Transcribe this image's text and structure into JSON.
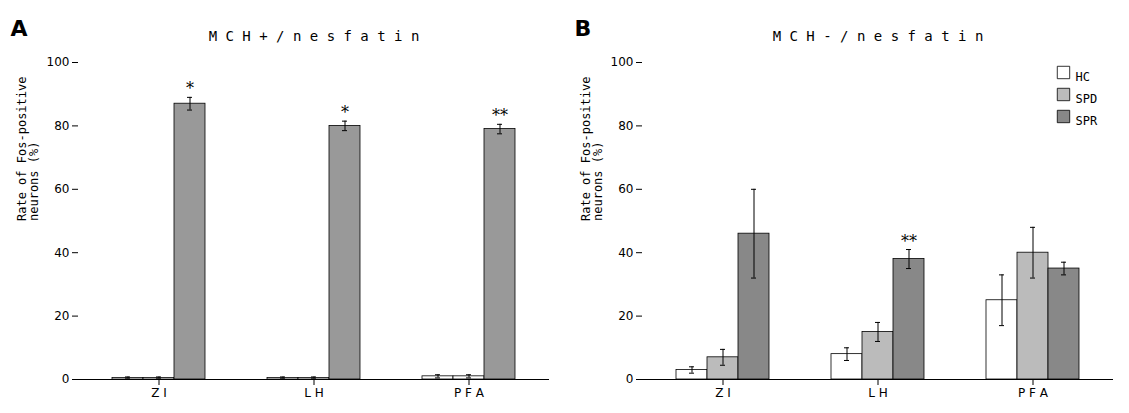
{
  "chart_data": [
    {
      "type": "bar",
      "title": "M C H + / n e s f a t i n",
      "ylabel": "Rate of Fos-positive\nneurons (%)",
      "categories": [
        "Z I",
        "L H",
        "P F A"
      ],
      "series": [
        {
          "name": "HC",
          "color": "#ffffff",
          "values": [
            0.5,
            0.5,
            1.0
          ],
          "errors": [
            0.3,
            0.3,
            0.5
          ]
        },
        {
          "name": "SPD",
          "color": "#ffffff",
          "values": [
            0.5,
            0.5,
            1.0
          ],
          "errors": [
            0.3,
            0.3,
            0.5
          ]
        },
        {
          "name": "SPR",
          "color": "#999999",
          "values": [
            87.0,
            80.0,
            79.0
          ],
          "errors": [
            2.0,
            1.5,
            1.5
          ]
        }
      ],
      "ylim": [
        0,
        100
      ],
      "yticks": [
        0,
        20,
        40,
        60,
        80,
        100
      ],
      "grid": false,
      "annotations": [
        {
          "text": "A"
        },
        {
          "text": "*",
          "series": "SPR",
          "category": "Z I"
        },
        {
          "text": "*",
          "series": "SPR",
          "category": "L H"
        },
        {
          "text": "**",
          "series": "SPR",
          "category": "P F A"
        }
      ]
    },
    {
      "type": "bar",
      "title": "M C H - / n e s f a t i n",
      "ylabel": "Rate of Fos-positive\nneurons (%)",
      "categories": [
        "Z I",
        "L H",
        "P F A"
      ],
      "series": [
        {
          "name": "HC",
          "color": "#ffffff",
          "values": [
            3.0,
            8.0,
            25.0
          ],
          "errors": [
            1.0,
            2.0,
            8.0
          ]
        },
        {
          "name": "SPD",
          "color": "#bbbbbb",
          "values": [
            7.0,
            15.0,
            40.0
          ],
          "errors": [
            2.5,
            3.0,
            8.0
          ]
        },
        {
          "name": "SPR",
          "color": "#888888",
          "values": [
            46.0,
            38.0,
            35.0
          ],
          "errors": [
            14.0,
            3.0,
            2.0
          ]
        }
      ],
      "ylim": [
        0,
        100
      ],
      "yticks": [
        0,
        20,
        40,
        60,
        80,
        100
      ],
      "grid": false,
      "legend": "upper right",
      "annotations": [
        {
          "text": "B"
        },
        {
          "text": "**",
          "series": "SPR",
          "category": "L H"
        }
      ]
    }
  ]
}
